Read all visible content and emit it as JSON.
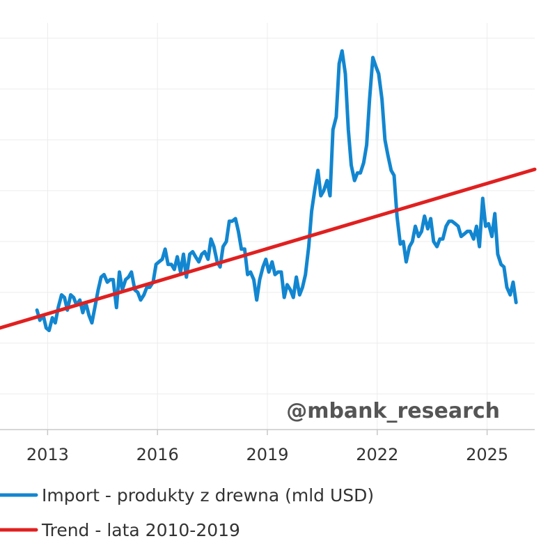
{
  "watermark": "@mbank_research",
  "chart_data": {
    "type": "line",
    "title": "",
    "xlabel": "",
    "ylabel": "",
    "x_ticks": [
      "2013",
      "2016",
      "2019",
      "2022",
      "2025"
    ],
    "x_range": [
      2011.7,
      2026.3
    ],
    "ylim": [
      0.3,
      8.3
    ],
    "grid": true,
    "legend_position": "bottom-left",
    "series": [
      {
        "name": "Import - produkty z drewna (mld USD)",
        "color": "#1286d0",
        "points": [
          [
            2012.71,
            2.65
          ],
          [
            2012.79,
            2.45
          ],
          [
            2012.88,
            2.55
          ],
          [
            2012.96,
            2.3
          ],
          [
            2013.04,
            2.25
          ],
          [
            2013.13,
            2.5
          ],
          [
            2013.21,
            2.4
          ],
          [
            2013.29,
            2.7
          ],
          [
            2013.38,
            2.95
          ],
          [
            2013.46,
            2.9
          ],
          [
            2013.54,
            2.65
          ],
          [
            2013.63,
            2.95
          ],
          [
            2013.71,
            2.9
          ],
          [
            2013.79,
            2.75
          ],
          [
            2013.88,
            2.85
          ],
          [
            2013.96,
            2.6
          ],
          [
            2014.04,
            2.8
          ],
          [
            2014.13,
            2.55
          ],
          [
            2014.21,
            2.4
          ],
          [
            2014.29,
            2.7
          ],
          [
            2014.38,
            3.05
          ],
          [
            2014.46,
            3.3
          ],
          [
            2014.54,
            3.35
          ],
          [
            2014.63,
            3.2
          ],
          [
            2014.71,
            3.25
          ],
          [
            2014.79,
            3.25
          ],
          [
            2014.88,
            2.7
          ],
          [
            2014.96,
            3.4
          ],
          [
            2015.04,
            3.05
          ],
          [
            2015.13,
            3.25
          ],
          [
            2015.21,
            3.3
          ],
          [
            2015.29,
            3.4
          ],
          [
            2015.38,
            3.05
          ],
          [
            2015.46,
            3.0
          ],
          [
            2015.54,
            2.85
          ],
          [
            2015.63,
            2.95
          ],
          [
            2015.71,
            3.1
          ],
          [
            2015.79,
            3.1
          ],
          [
            2015.88,
            3.2
          ],
          [
            2015.96,
            3.55
          ],
          [
            2016.04,
            3.6
          ],
          [
            2016.13,
            3.65
          ],
          [
            2016.21,
            3.85
          ],
          [
            2016.29,
            3.55
          ],
          [
            2016.38,
            3.55
          ],
          [
            2016.46,
            3.45
          ],
          [
            2016.54,
            3.7
          ],
          [
            2016.63,
            3.4
          ],
          [
            2016.71,
            3.75
          ],
          [
            2016.79,
            3.3
          ],
          [
            2016.88,
            3.75
          ],
          [
            2016.96,
            3.8
          ],
          [
            2017.04,
            3.7
          ],
          [
            2017.13,
            3.6
          ],
          [
            2017.21,
            3.75
          ],
          [
            2017.29,
            3.8
          ],
          [
            2017.38,
            3.65
          ],
          [
            2017.46,
            4.05
          ],
          [
            2017.54,
            3.9
          ],
          [
            2017.63,
            3.6
          ],
          [
            2017.71,
            3.5
          ],
          [
            2017.79,
            3.9
          ],
          [
            2017.88,
            4.0
          ],
          [
            2017.96,
            4.4
          ],
          [
            2018.04,
            4.4
          ],
          [
            2018.13,
            4.45
          ],
          [
            2018.21,
            4.2
          ],
          [
            2018.29,
            3.85
          ],
          [
            2018.38,
            3.85
          ],
          [
            2018.46,
            3.35
          ],
          [
            2018.54,
            3.4
          ],
          [
            2018.63,
            3.25
          ],
          [
            2018.71,
            2.85
          ],
          [
            2018.79,
            3.25
          ],
          [
            2018.88,
            3.5
          ],
          [
            2018.96,
            3.65
          ],
          [
            2019.04,
            3.4
          ],
          [
            2019.13,
            3.6
          ],
          [
            2019.21,
            3.35
          ],
          [
            2019.29,
            3.4
          ],
          [
            2019.38,
            3.4
          ],
          [
            2019.46,
            2.9
          ],
          [
            2019.54,
            3.15
          ],
          [
            2019.63,
            3.05
          ],
          [
            2019.71,
            2.9
          ],
          [
            2019.79,
            3.3
          ],
          [
            2019.88,
            2.95
          ],
          [
            2019.96,
            3.1
          ],
          [
            2020.04,
            3.35
          ],
          [
            2020.13,
            3.9
          ],
          [
            2020.21,
            4.6
          ],
          [
            2020.29,
            5.0
          ],
          [
            2020.38,
            5.4
          ],
          [
            2020.46,
            4.9
          ],
          [
            2020.54,
            5.0
          ],
          [
            2020.63,
            5.2
          ],
          [
            2020.71,
            4.9
          ],
          [
            2020.79,
            6.2
          ],
          [
            2020.88,
            6.45
          ],
          [
            2020.96,
            7.5
          ],
          [
            2021.04,
            7.75
          ],
          [
            2021.13,
            7.3
          ],
          [
            2021.21,
            6.2
          ],
          [
            2021.29,
            5.5
          ],
          [
            2021.38,
            5.2
          ],
          [
            2021.46,
            5.35
          ],
          [
            2021.54,
            5.35
          ],
          [
            2021.63,
            5.55
          ],
          [
            2021.71,
            5.9
          ],
          [
            2021.79,
            6.8
          ],
          [
            2021.88,
            7.62
          ],
          [
            2021.96,
            7.45
          ],
          [
            2022.04,
            7.3
          ],
          [
            2022.13,
            6.8
          ],
          [
            2022.21,
            6.0
          ],
          [
            2022.29,
            5.7
          ],
          [
            2022.38,
            5.4
          ],
          [
            2022.46,
            5.3
          ],
          [
            2022.54,
            4.5
          ],
          [
            2022.63,
            3.95
          ],
          [
            2022.71,
            4.0
          ],
          [
            2022.79,
            3.6
          ],
          [
            2022.88,
            3.9
          ],
          [
            2022.96,
            4.0
          ],
          [
            2023.04,
            4.3
          ],
          [
            2023.13,
            4.1
          ],
          [
            2023.21,
            4.2
          ],
          [
            2023.29,
            4.5
          ],
          [
            2023.38,
            4.25
          ],
          [
            2023.46,
            4.45
          ],
          [
            2023.54,
            4.0
          ],
          [
            2023.63,
            3.9
          ],
          [
            2023.71,
            4.05
          ],
          [
            2023.79,
            4.05
          ],
          [
            2023.88,
            4.3
          ],
          [
            2023.96,
            4.4
          ],
          [
            2024.04,
            4.4
          ],
          [
            2024.13,
            4.35
          ],
          [
            2024.21,
            4.3
          ],
          [
            2024.29,
            4.1
          ],
          [
            2024.38,
            4.15
          ],
          [
            2024.46,
            4.2
          ],
          [
            2024.54,
            4.2
          ],
          [
            2024.63,
            4.05
          ],
          [
            2024.71,
            4.3
          ],
          [
            2024.79,
            3.9
          ],
          [
            2024.88,
            4.85
          ],
          [
            2024.96,
            4.3
          ],
          [
            2025.04,
            4.35
          ],
          [
            2025.13,
            4.1
          ],
          [
            2025.21,
            4.55
          ],
          [
            2025.29,
            3.75
          ],
          [
            2025.38,
            3.55
          ],
          [
            2025.46,
            3.5
          ],
          [
            2025.54,
            3.1
          ],
          [
            2025.63,
            2.95
          ],
          [
            2025.71,
            3.2
          ],
          [
            2025.79,
            2.8
          ]
        ]
      },
      {
        "name": "Trend - lata 2010-2019",
        "color": "#e02020",
        "points": [
          [
            2011.7,
            2.3
          ],
          [
            2026.3,
            5.42
          ]
        ]
      }
    ]
  }
}
